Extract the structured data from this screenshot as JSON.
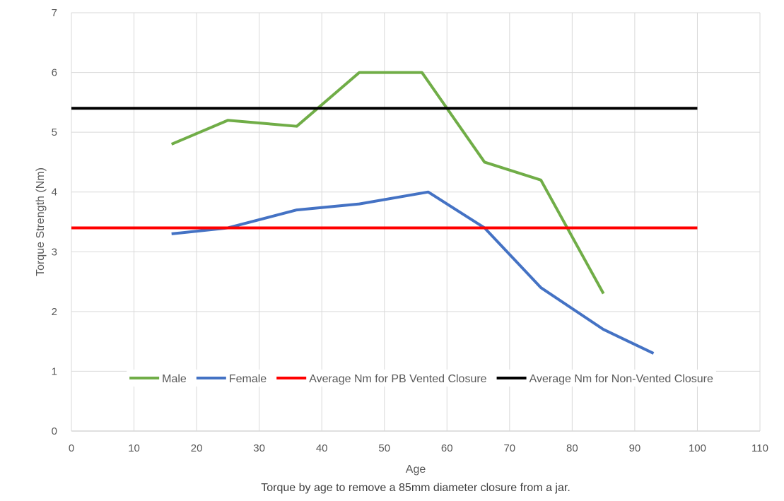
{
  "chart_data": {
    "type": "line",
    "xlabel": "Age",
    "ylabel": "Torque Strength (Nm)",
    "caption": "Torque by age to remove a 85mm diameter closure from a jar.",
    "xlim": [
      0,
      110
    ],
    "ylim": [
      0,
      7
    ],
    "x_ticks": [
      0,
      10,
      20,
      30,
      40,
      50,
      60,
      70,
      80,
      90,
      100,
      110
    ],
    "y_ticks": [
      0,
      1,
      2,
      3,
      4,
      5,
      6,
      7
    ],
    "grid": true,
    "legend_position": "inside-bottom",
    "series": [
      {
        "name": "Male",
        "color": "#70AD47",
        "points": [
          [
            16,
            4.8
          ],
          [
            25,
            5.2
          ],
          [
            36,
            5.1
          ],
          [
            46,
            6.0
          ],
          [
            56,
            6.0
          ],
          [
            66,
            4.5
          ],
          [
            75,
            4.2
          ],
          [
            85,
            2.3
          ]
        ]
      },
      {
        "name": "Female",
        "color": "#4472C4",
        "points": [
          [
            16,
            3.3
          ],
          [
            25,
            3.4
          ],
          [
            36,
            3.7
          ],
          [
            46,
            3.8
          ],
          [
            57,
            4.0
          ],
          [
            66,
            3.4
          ],
          [
            75,
            2.4
          ],
          [
            85,
            1.7
          ],
          [
            93,
            1.3
          ]
        ]
      },
      {
        "name": "Average Nm for PB Vented Closure",
        "color": "#FF0000",
        "points": [
          [
            0,
            3.4
          ],
          [
            100,
            3.4
          ]
        ]
      },
      {
        "name": "Average Nm for Non-Vented Closure",
        "color": "#000000",
        "points": [
          [
            0,
            5.4
          ],
          [
            100,
            5.4
          ]
        ]
      }
    ]
  }
}
